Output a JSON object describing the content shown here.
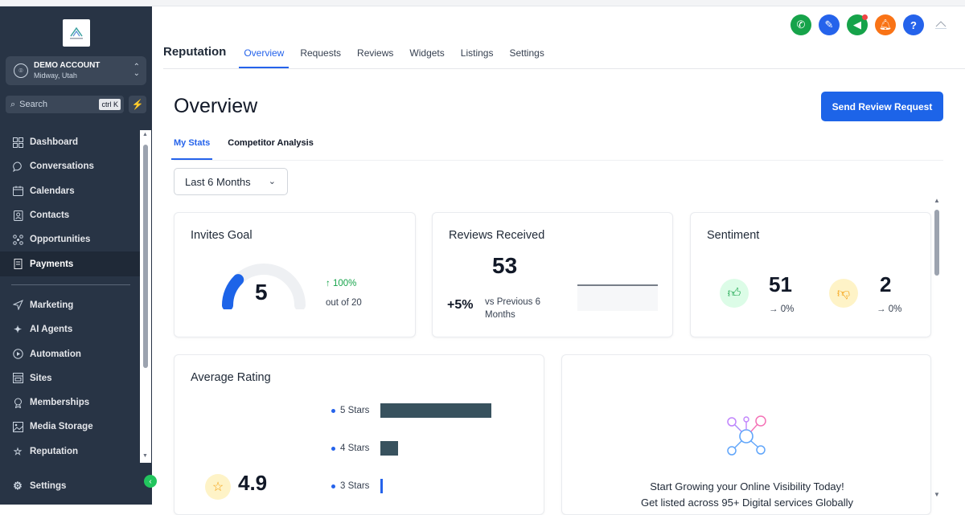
{
  "sidebar": {
    "account": {
      "name": "DEMO ACCOUNT",
      "location": "Midway, Utah"
    },
    "search": {
      "placeholder": "Search",
      "shortcut": "ctrl K"
    },
    "items": [
      {
        "label": "Dashboard",
        "icon": "grid-icon"
      },
      {
        "label": "Conversations",
        "icon": "chat-icon"
      },
      {
        "label": "Calendars",
        "icon": "calendar-icon"
      },
      {
        "label": "Contacts",
        "icon": "contacts-icon"
      },
      {
        "label": "Opportunities",
        "icon": "opportunities-icon"
      },
      {
        "label": "Payments",
        "icon": "payments-icon"
      }
    ],
    "items2": [
      {
        "label": "Marketing",
        "icon": "send-icon"
      },
      {
        "label": "AI Agents",
        "icon": "sparkle-icon"
      },
      {
        "label": "Automation",
        "icon": "automation-icon"
      },
      {
        "label": "Sites",
        "icon": "sites-icon"
      },
      {
        "label": "Memberships",
        "icon": "award-icon"
      },
      {
        "label": "Media Storage",
        "icon": "image-icon"
      },
      {
        "label": "Reputation",
        "icon": "star-icon"
      }
    ],
    "settings_label": "Settings"
  },
  "header": {
    "section_title": "Reputation",
    "tabs": [
      "Overview",
      "Requests",
      "Reviews",
      "Widgets",
      "Listings",
      "Settings"
    ],
    "icon_colors": [
      "#16a34a",
      "#2563eb",
      "#16a34a",
      "#f97316",
      "#2563eb"
    ]
  },
  "main": {
    "title": "Overview",
    "primary_button": "Send Review Request",
    "subtabs": [
      "My Stats",
      "Competitor Analysis"
    ],
    "range": "Last 6 Months",
    "invites": {
      "title": "Invites Goal",
      "value": "5",
      "change": "↑ 100%",
      "out_of": "out of 20",
      "progress": 0.25
    },
    "reviews": {
      "title": "Reviews Received",
      "value": "53",
      "change": "+5%",
      "compare": "vs Previous 6 Months"
    },
    "sentiment": {
      "title": "Sentiment",
      "positive": "51",
      "positive_change": "→ 0%",
      "negative": "2",
      "negative_change": "→ 0%"
    },
    "rating": {
      "title": "Average Rating",
      "value": "4.9",
      "bars": [
        {
          "label": "5 Stars",
          "value": 51
        },
        {
          "label": "4 Stars",
          "value": 8
        },
        {
          "label": "3 Stars",
          "value": 1
        }
      ]
    },
    "listings": {
      "headline": "Start Growing your Online Visibility Today!",
      "subline": "Get listed across 95+ Digital services Globally"
    }
  }
}
